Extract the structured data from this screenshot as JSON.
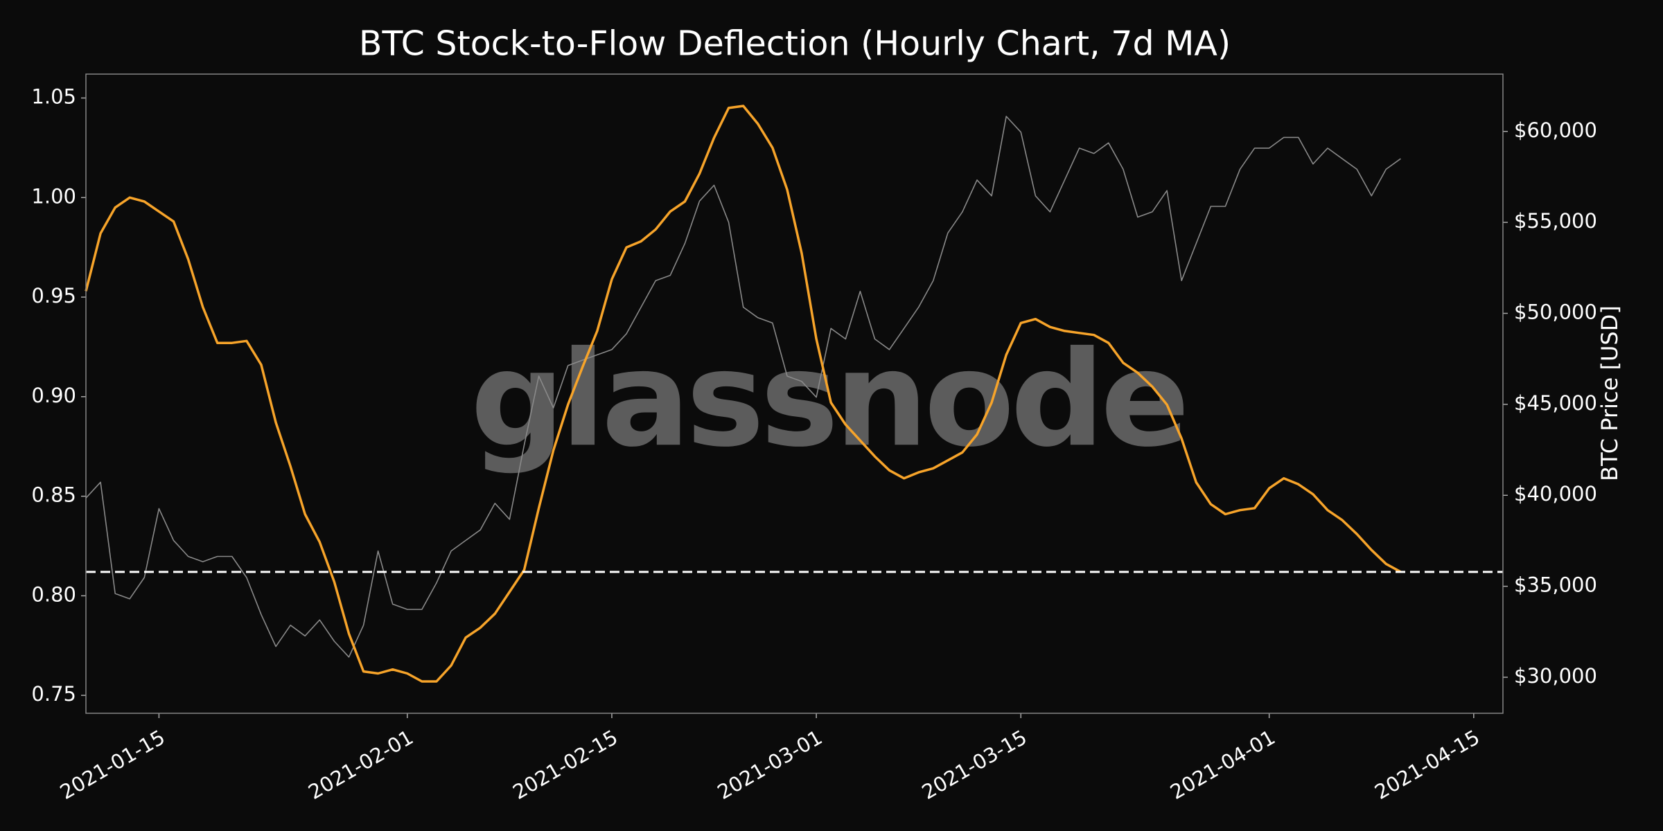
{
  "chart_data": {
    "type": "line",
    "title": "BTC Stock-to-Flow Deflection (Hourly Chart, 7d MA)",
    "y2label": "BTC Price [USD]",
    "watermark": "glassnode",
    "x": [
      "2021-01-10",
      "2021-01-11",
      "2021-01-12",
      "2021-01-13",
      "2021-01-14",
      "2021-01-15",
      "2021-01-16",
      "2021-01-17",
      "2021-01-18",
      "2021-01-19",
      "2021-01-20",
      "2021-01-21",
      "2021-01-22",
      "2021-01-23",
      "2021-01-24",
      "2021-01-25",
      "2021-01-26",
      "2021-01-27",
      "2021-01-28",
      "2021-01-29",
      "2021-01-30",
      "2021-01-31",
      "2021-02-01",
      "2021-02-02",
      "2021-02-03",
      "2021-02-04",
      "2021-02-05",
      "2021-02-06",
      "2021-02-07",
      "2021-02-08",
      "2021-02-09",
      "2021-02-10",
      "2021-02-11",
      "2021-02-12",
      "2021-02-13",
      "2021-02-14",
      "2021-02-15",
      "2021-02-16",
      "2021-02-17",
      "2021-02-18",
      "2021-02-19",
      "2021-02-20",
      "2021-02-21",
      "2021-02-22",
      "2021-02-23",
      "2021-02-24",
      "2021-02-25",
      "2021-02-26",
      "2021-02-27",
      "2021-02-28",
      "2021-03-01",
      "2021-03-02",
      "2021-03-03",
      "2021-03-04",
      "2021-03-05",
      "2021-03-06",
      "2021-03-07",
      "2021-03-08",
      "2021-03-09",
      "2021-03-10",
      "2021-03-11",
      "2021-03-12",
      "2021-03-13",
      "2021-03-14",
      "2021-03-15",
      "2021-03-16",
      "2021-03-17",
      "2021-03-18",
      "2021-03-19",
      "2021-03-20",
      "2021-03-21",
      "2021-03-22",
      "2021-03-23",
      "2021-03-24",
      "2021-03-25",
      "2021-03-26",
      "2021-03-27",
      "2021-03-28",
      "2021-03-29",
      "2021-03-30",
      "2021-03-31",
      "2021-04-01",
      "2021-04-02",
      "2021-04-03",
      "2021-04-04",
      "2021-04-05",
      "2021-04-06",
      "2021-04-07",
      "2021-04-08",
      "2021-04-09",
      "2021-04-10"
    ],
    "series": [
      {
        "color": "#f7a42a",
        "values": [
          0.953,
          0.982,
          0.995,
          1.0,
          0.998,
          0.993,
          0.988,
          0.969,
          0.945,
          0.927,
          0.927,
          0.928,
          0.916,
          0.887,
          0.865,
          0.841,
          0.827,
          0.807,
          0.781,
          0.762,
          0.761,
          0.763,
          0.761,
          0.757,
          0.757,
          0.765,
          0.779,
          0.784,
          0.791,
          0.802,
          0.813,
          0.844,
          0.873,
          0.896,
          0.915,
          0.933,
          0.959,
          0.975,
          0.978,
          0.984,
          0.993,
          0.998,
          1.012,
          1.03,
          1.045,
          1.046,
          1.037,
          1.025,
          1.004,
          0.972,
          0.929,
          0.897,
          0.886,
          0.878,
          0.87,
          0.863,
          0.859,
          0.862,
          0.864,
          0.868,
          0.872,
          0.881,
          0.897,
          0.921,
          0.937,
          0.939,
          0.935,
          0.933,
          0.932,
          0.931,
          0.927,
          0.917,
          0.912,
          0.905,
          0.896,
          0.879,
          0.857,
          0.846,
          0.841,
          0.843,
          0.844,
          0.854,
          0.859,
          0.856,
          0.851,
          0.843,
          0.838,
          0.831,
          0.823,
          0.816,
          0.812
        ]
      },
      {
        "color": "#8a8a8a",
        "axis": "y2",
        "values": [
          39850,
          40720,
          34600,
          34310,
          35480,
          39270,
          37520,
          36640,
          36350,
          36640,
          36640,
          35480,
          33440,
          31690,
          32860,
          32270,
          33150,
          31980,
          31110,
          32860,
          36940,
          34020,
          33730,
          33730,
          35190,
          36940,
          37520,
          38100,
          39560,
          38680,
          42760,
          46550,
          44800,
          47130,
          47430,
          47720,
          48010,
          48880,
          50340,
          51800,
          52090,
          53840,
          56170,
          57040,
          55000,
          50340,
          49760,
          49470,
          46550,
          46260,
          45390,
          49170,
          48590,
          51210,
          48590,
          48010,
          49170,
          50340,
          51800,
          54420,
          55580,
          57330,
          56460,
          60830,
          59960,
          56460,
          55580,
          57330,
          59080,
          58790,
          59370,
          57920,
          55290,
          55580,
          56750,
          51800,
          53840,
          55880,
          55880,
          57920,
          59080,
          59080,
          59670,
          59670,
          58210,
          59080,
          58500,
          57920,
          56460,
          57920,
          58500
        ]
      }
    ],
    "hline": 0.812,
    "xlim": [
      "2021-01-10",
      "2021-04-17"
    ],
    "xticks": [
      "2021-01-15",
      "2021-02-01",
      "2021-02-15",
      "2021-03-01",
      "2021-03-15",
      "2021-04-01",
      "2021-04-15"
    ],
    "ylim": [
      0.741,
      1.062
    ],
    "yticks": [
      {
        "value": 0.75,
        "label": "0.75"
      },
      {
        "value": 0.8,
        "label": "0.80"
      },
      0.85,
      {
        "value": 0.9,
        "label": "0.90"
      },
      0.95,
      {
        "value": 1.0,
        "label": "1.00"
      },
      1.05
    ],
    "y2lim": [
      28020,
      63150
    ],
    "y2ticks": [
      {
        "value": 30000,
        "label": "$30,000"
      },
      {
        "value": 35000,
        "label": "$35,000"
      },
      {
        "value": 40000,
        "label": "$40,000"
      },
      {
        "value": 45000,
        "label": "$45,000"
      },
      {
        "value": 50000,
        "label": "$50,000"
      },
      {
        "value": 55000,
        "label": "$55,000"
      },
      {
        "value": 60000,
        "label": "$60,000"
      }
    ]
  }
}
